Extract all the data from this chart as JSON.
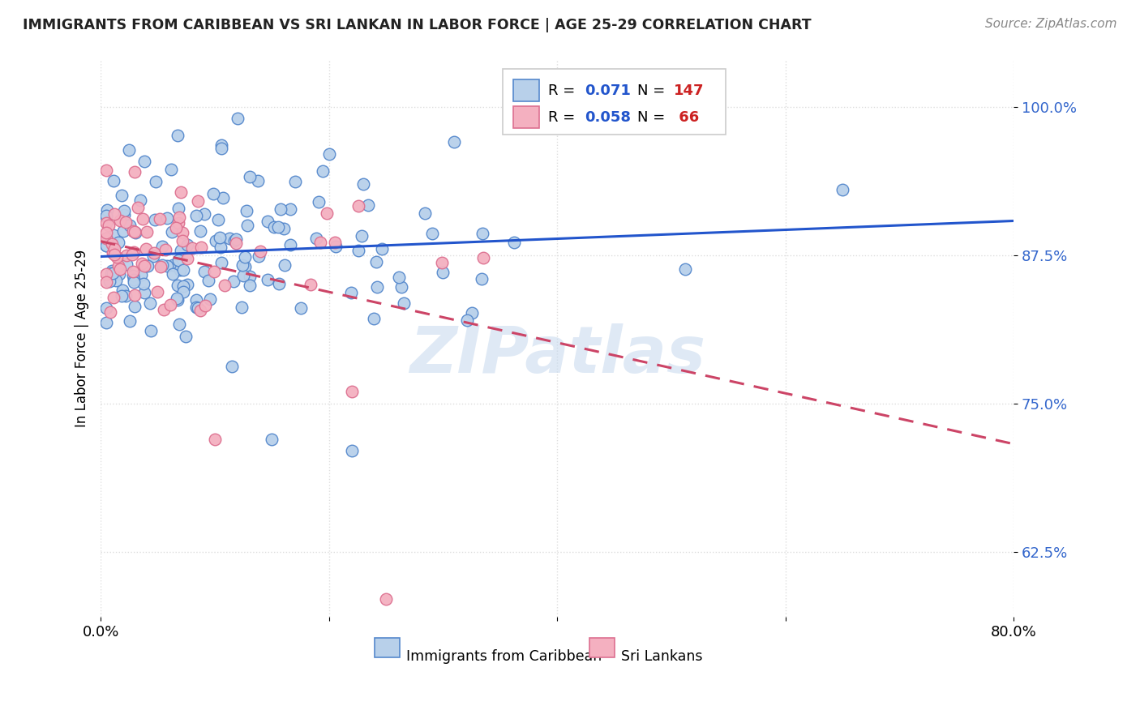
{
  "title": "IMMIGRANTS FROM CARIBBEAN VS SRI LANKAN IN LABOR FORCE | AGE 25-29 CORRELATION CHART",
  "source": "Source: ZipAtlas.com",
  "ylabel": "In Labor Force | Age 25-29",
  "ytick_labels": [
    "62.5%",
    "75.0%",
    "87.5%",
    "100.0%"
  ],
  "ytick_values": [
    0.625,
    0.75,
    0.875,
    1.0
  ],
  "xlim": [
    0.0,
    0.8
  ],
  "ylim": [
    0.57,
    1.04
  ],
  "legend_blue_r": "0.071",
  "legend_blue_n": "147",
  "legend_pink_r": "0.058",
  "legend_pink_n": "66",
  "legend_label_blue": "Immigrants from Caribbean",
  "legend_label_pink": "Sri Lankans",
  "blue_fill": "#b8d0ea",
  "blue_edge": "#5588cc",
  "pink_fill": "#f4b0c0",
  "pink_edge": "#dd7090",
  "blue_line_color": "#2255cc",
  "pink_line_color": "#cc4466",
  "watermark": "ZIPatlas",
  "title_color": "#222222",
  "source_color": "#888888",
  "tick_color_right": "#3366cc",
  "grid_color": "#dddddd"
}
